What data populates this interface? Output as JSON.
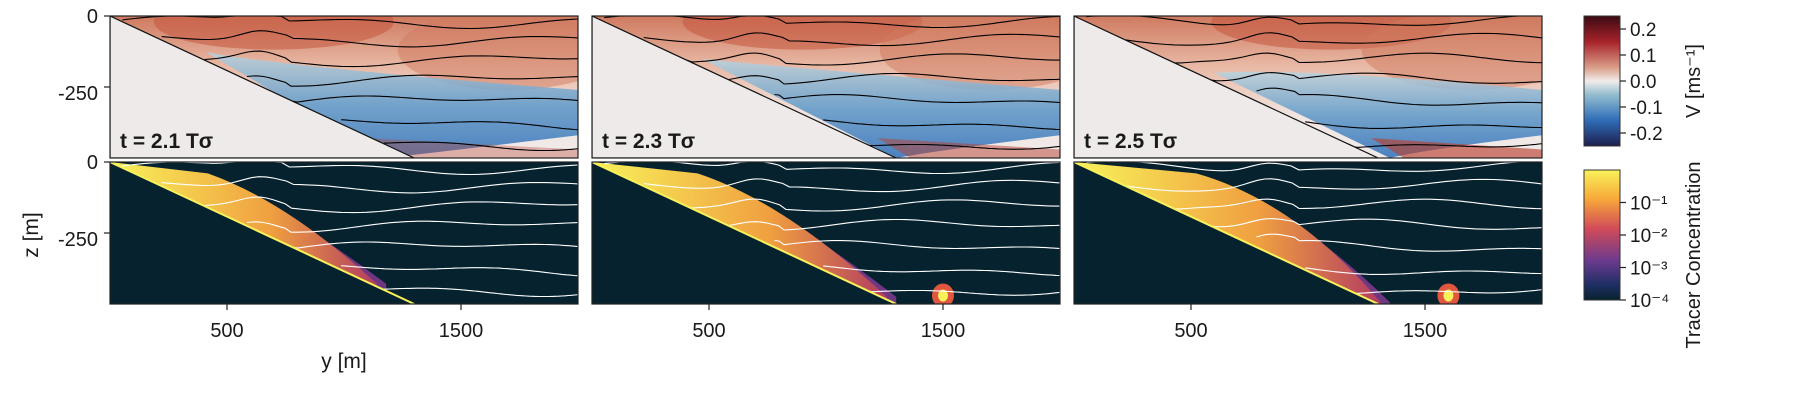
{
  "chart_data": {
    "type": "heatmap",
    "panels": [
      {
        "time_label": "t = 2.1 Tσ",
        "front_y": 760,
        "tracer_tail_y": 1180
      },
      {
        "time_label": "t = 2.3 Tσ",
        "front_y": 820,
        "tracer_tail_y": 1300,
        "blob_y": 1500
      },
      {
        "time_label": "t = 2.5 Tσ",
        "front_y": 950,
        "tracer_tail_y": 1350,
        "blob_y": 1600
      }
    ],
    "x_axis": {
      "label": "y [m]",
      "ticks": [
        "500",
        "1500"
      ],
      "tick_values": [
        500,
        1500
      ],
      "range": [
        0,
        2000
      ]
    },
    "y_axis": {
      "label": "z [m]",
      "ticks": [
        "0",
        "-250"
      ],
      "tick_values": [
        0,
        -250
      ],
      "range": [
        -500,
        0
      ]
    },
    "slope": {
      "top": [
        0,
        0
      ],
      "bottom": [
        1300,
        -500
      ]
    },
    "top_row": {
      "variable": "V",
      "colorbar": {
        "label": "V [ms⁻¹]",
        "ticks": [
          "0.2",
          "0.1",
          "0.0",
          "-0.1",
          "-0.2"
        ],
        "tick_values": [
          0.2,
          0.1,
          0.0,
          -0.1,
          -0.2
        ],
        "range": [
          -0.25,
          0.25
        ],
        "colormap": "balance"
      },
      "contour_color": "#000000"
    },
    "bottom_row": {
      "variable": "Tracer Concentration",
      "colorbar": {
        "label": "Tracer Concentration",
        "ticks": [
          "10⁻¹",
          "10⁻²",
          "10⁻³",
          "10⁻⁴"
        ],
        "tick_values": [
          0.1,
          0.01,
          0.001,
          0.0001
        ],
        "range": [
          0.0001,
          1
        ],
        "scale": "log",
        "colormap": "thermal"
      },
      "background_color": "#06222f",
      "contour_color": "#ffffff"
    },
    "isopycnal_depths": [
      -20,
      -85,
      -155,
      -225,
      -300,
      -380,
      -450
    ]
  }
}
